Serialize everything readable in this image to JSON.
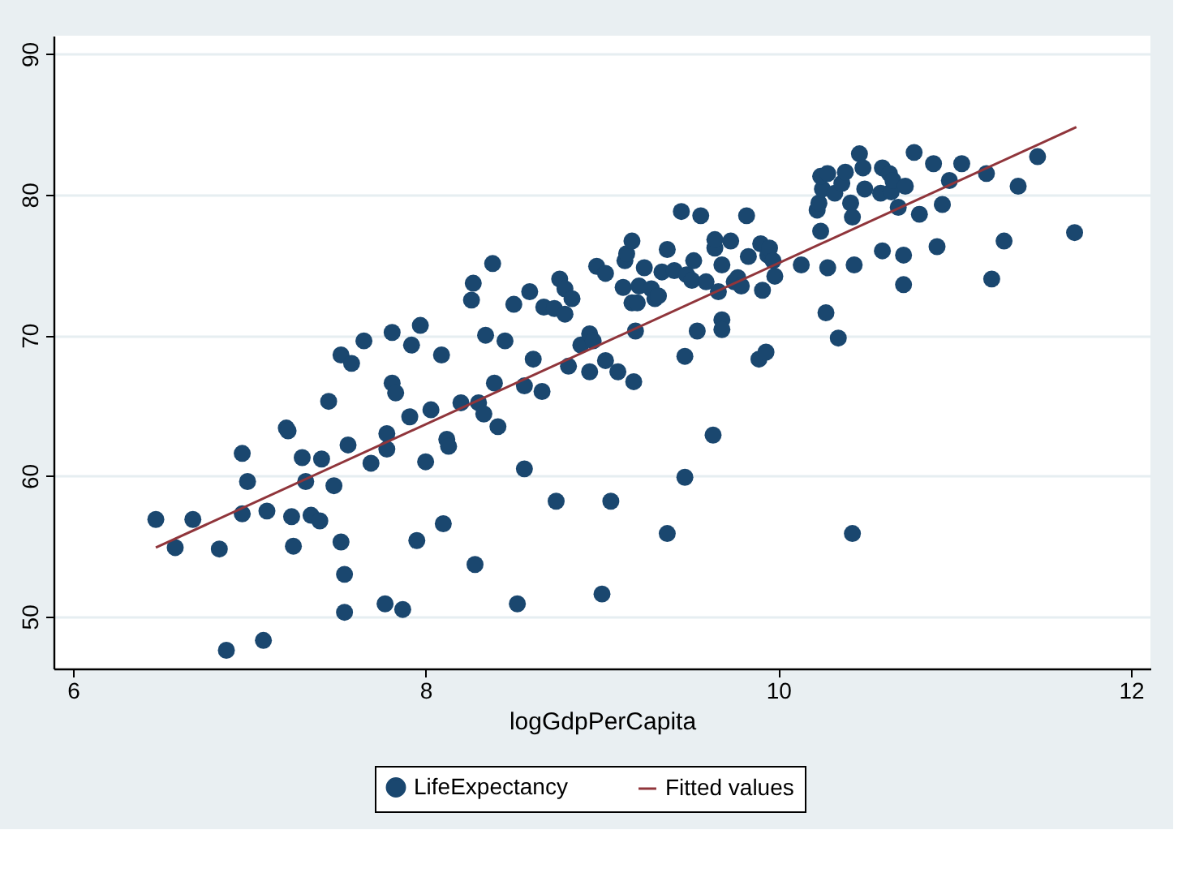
{
  "chart_data": {
    "type": "scatter",
    "xlabel": "logGdpPerCapita",
    "xlim": [
      5.89,
      12.11
    ],
    "ylim": [
      46.3,
      91.3
    ],
    "xticks": [
      6,
      8,
      10,
      12
    ],
    "yticks": [
      50,
      60,
      70,
      80,
      90
    ],
    "grid": "y",
    "legend": "bottom",
    "series": [
      {
        "name": "LifeExpectancy",
        "marker": "circle",
        "color": "#1a476f",
        "x": [
          6.47,
          6.58,
          6.68,
          6.83,
          6.87,
          6.96,
          6.99,
          6.96,
          7.08,
          7.1,
          7.21,
          7.22,
          7.25,
          7.24,
          7.3,
          7.32,
          7.35,
          7.4,
          7.41,
          7.45,
          7.48,
          7.52,
          7.52,
          7.54,
          7.54,
          7.56,
          7.58,
          7.65,
          7.69,
          7.77,
          7.78,
          7.78,
          7.81,
          7.81,
          7.83,
          7.87,
          7.91,
          7.92,
          7.95,
          7.97,
          8.0,
          8.03,
          8.09,
          8.1,
          8.12,
          8.13,
          8.2,
          8.26,
          8.27,
          8.28,
          8.3,
          8.33,
          8.34,
          8.38,
          8.39,
          8.41,
          8.45,
          8.5,
          8.52,
          8.56,
          8.56,
          8.59,
          8.61,
          8.66,
          8.67,
          8.73,
          8.74,
          8.76,
          8.79,
          8.79,
          8.81,
          8.83,
          8.88,
          8.93,
          8.95,
          8.93,
          8.97,
          9.0,
          9.02,
          9.02,
          9.05,
          9.09,
          9.12,
          9.13,
          9.14,
          9.17,
          9.17,
          9.18,
          9.19,
          9.2,
          9.21,
          9.24,
          9.28,
          9.3,
          9.32,
          9.34,
          9.37,
          9.37,
          9.41,
          9.45,
          9.47,
          9.47,
          9.48,
          9.51,
          9.52,
          9.54,
          9.56,
          9.59,
          9.63,
          9.64,
          9.64,
          9.66,
          9.68,
          9.68,
          9.68,
          9.73,
          9.75,
          9.77,
          9.79,
          9.82,
          9.83,
          9.89,
          9.9,
          9.91,
          9.93,
          9.94,
          9.95,
          9.97,
          9.98,
          10.13,
          10.22,
          10.24,
          10.23,
          10.25,
          10.24,
          10.28,
          10.28,
          10.27,
          10.32,
          10.34,
          10.36,
          10.38,
          10.41,
          10.42,
          10.42,
          10.43,
          10.46,
          10.48,
          10.49,
          10.58,
          10.59,
          10.59,
          10.63,
          10.64,
          10.65,
          10.68,
          10.71,
          10.71,
          10.72,
          10.77,
          10.8,
          10.88,
          10.9,
          10.93,
          10.97,
          11.04,
          11.18,
          11.21,
          11.28,
          11.36,
          11.47,
          11.68
        ],
        "values": [
          56.9,
          54.9,
          56.9,
          54.8,
          47.6,
          61.6,
          59.6,
          57.3,
          48.3,
          57.5,
          63.4,
          63.2,
          55.0,
          57.1,
          61.3,
          59.6,
          57.2,
          56.8,
          61.2,
          65.3,
          59.3,
          55.3,
          68.6,
          53.0,
          50.3,
          62.2,
          68.0,
          69.6,
          60.9,
          50.9,
          63.0,
          61.9,
          70.2,
          66.6,
          65.9,
          50.5,
          64.2,
          69.3,
          55.4,
          70.7,
          61.0,
          64.7,
          68.6,
          56.6,
          62.6,
          62.1,
          65.2,
          72.5,
          73.7,
          53.7,
          65.2,
          64.4,
          70.0,
          75.1,
          66.6,
          63.5,
          69.6,
          72.2,
          50.9,
          66.4,
          60.5,
          73.1,
          68.3,
          66.0,
          72.0,
          71.9,
          58.2,
          74.0,
          73.3,
          71.5,
          67.8,
          72.6,
          69.3,
          70.1,
          69.6,
          67.4,
          74.9,
          51.6,
          74.4,
          68.2,
          58.2,
          67.4,
          73.4,
          75.3,
          75.8,
          76.7,
          72.3,
          66.7,
          70.3,
          72.3,
          73.5,
          74.8,
          73.3,
          72.6,
          72.8,
          74.5,
          76.1,
          55.9,
          74.6,
          78.8,
          68.5,
          59.9,
          74.3,
          73.9,
          75.3,
          70.3,
          78.5,
          73.8,
          62.9,
          76.2,
          76.8,
          73.1,
          75.0,
          71.1,
          70.4,
          76.7,
          73.8,
          74.1,
          73.5,
          78.5,
          75.6,
          68.3,
          76.5,
          73.2,
          68.8,
          75.7,
          76.2,
          75.3,
          74.2,
          75.0,
          78.9,
          77.4,
          79.4,
          80.4,
          81.3,
          81.5,
          74.8,
          71.6,
          80.1,
          69.8,
          80.8,
          81.6,
          79.4,
          78.4,
          55.9,
          75.0,
          82.9,
          81.9,
          80.4,
          80.1,
          81.9,
          76.0,
          81.5,
          80.2,
          81.0,
          79.1,
          75.7,
          73.6,
          80.6,
          83.0,
          78.6,
          82.2,
          76.3,
          79.3,
          81.0,
          82.2,
          81.5,
          74.0,
          76.7,
          80.6,
          82.7,
          77.3
        ]
      },
      {
        "name": "Fitted values",
        "type": "line",
        "marker": "none",
        "color": "#90353b",
        "x": [
          6.47,
          11.69
        ],
        "values": [
          54.9,
          84.8
        ]
      }
    ]
  }
}
